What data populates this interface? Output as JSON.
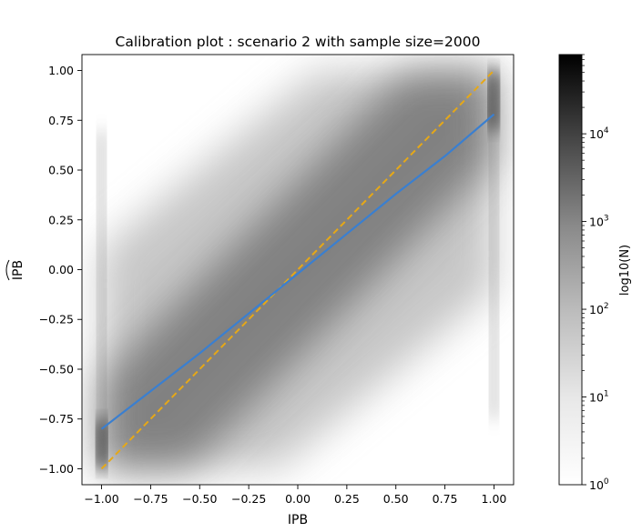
{
  "chart_data": {
    "type": "heatmap",
    "title": "Calibration plot : scenario 2 with sample size=2000",
    "xlabel": "IPB",
    "ylabel": "IPB",
    "ylabel_accent": "hat",
    "xlim": [
      -1.1,
      1.1
    ],
    "ylim": [
      -1.08,
      1.08
    ],
    "xticks": [
      -1.0,
      -0.75,
      -0.5,
      -0.25,
      0.0,
      0.25,
      0.5,
      0.75,
      1.0
    ],
    "xtick_labels": [
      "−1.00",
      "−0.75",
      "−0.50",
      "−0.25",
      "0.00",
      "0.25",
      "0.50",
      "0.75",
      "1.00"
    ],
    "yticks": [
      1.0,
      0.75,
      0.5,
      0.25,
      0.0,
      -0.25,
      -0.5,
      -0.75,
      -1.0
    ],
    "ytick_labels": [
      "1.00",
      "0.75",
      "0.50",
      "0.25",
      "0.00",
      "−0.25",
      "−0.50",
      "−0.75",
      "−1.00"
    ],
    "grid": false,
    "colorbar": {
      "label": "log10(N)",
      "scale": "log",
      "range": [
        1,
        80000
      ],
      "ticks": [
        {
          "value": 1,
          "base": "10",
          "exp": "0"
        },
        {
          "value": 10,
          "base": "10",
          "exp": "1"
        },
        {
          "value": 100,
          "base": "10",
          "exp": "2"
        },
        {
          "value": 1000,
          "base": "10",
          "exp": "3"
        },
        {
          "value": 10000,
          "base": "10",
          "exp": "4"
        }
      ],
      "colormap": [
        "#ffffff",
        "#000000"
      ]
    },
    "lines": [
      {
        "style": "dashed",
        "color": "#e6a817",
        "x": [
          -1.0,
          1.0
        ],
        "y": [
          -1.0,
          1.0
        ]
      },
      {
        "style": "solid",
        "color": "#3a7fd0",
        "x": [
          -1.0,
          -0.75,
          -0.5,
          -0.25,
          0.0,
          0.25,
          0.5,
          0.75,
          1.0
        ],
        "y": [
          -0.8,
          -0.61,
          -0.42,
          -0.22,
          -0.02,
          0.18,
          0.38,
          0.57,
          0.78
        ]
      }
    ]
  }
}
